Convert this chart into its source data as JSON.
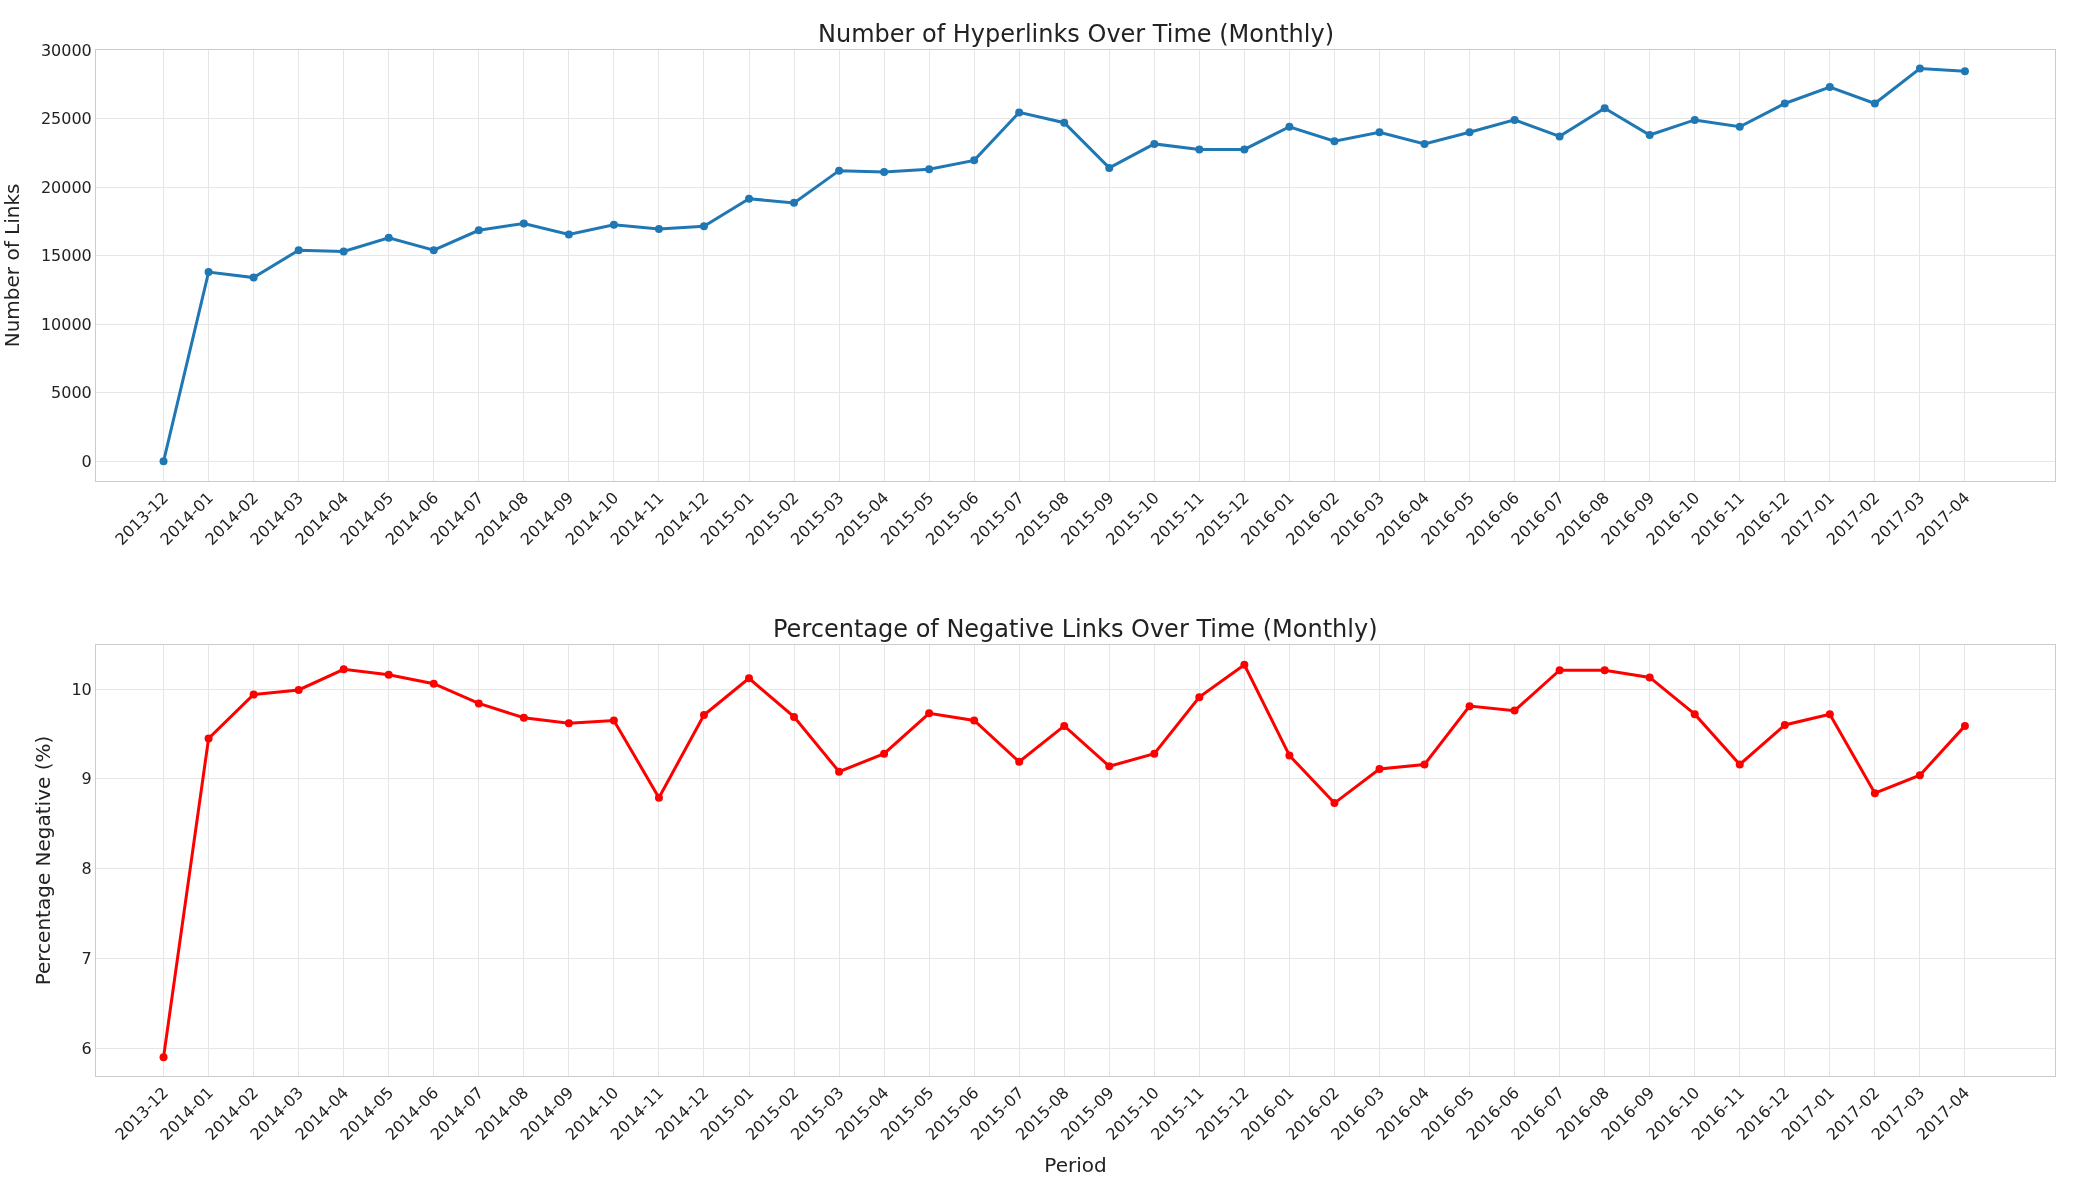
{
  "chart_data": [
    {
      "type": "line",
      "title": "Number of Hyperlinks Over Time (Monthly)",
      "ylabel": "Number of Links",
      "categories": [
        "2013-12",
        "2014-01",
        "2014-02",
        "2014-03",
        "2014-04",
        "2014-05",
        "2014-06",
        "2014-07",
        "2014-08",
        "2014-09",
        "2014-10",
        "2014-11",
        "2014-12",
        "2015-01",
        "2015-02",
        "2015-03",
        "2015-04",
        "2015-05",
        "2015-06",
        "2015-07",
        "2015-08",
        "2015-09",
        "2015-10",
        "2015-11",
        "2015-12",
        "2016-01",
        "2016-02",
        "2016-03",
        "2016-04",
        "2016-05",
        "2016-06",
        "2016-07",
        "2016-08",
        "2016-09",
        "2016-10",
        "2016-11",
        "2016-12",
        "2017-01",
        "2017-02",
        "2017-03",
        "2017-04"
      ],
      "series": [
        {
          "color": "#1f77b4",
          "values": [
            0,
            13800,
            13400,
            15400,
            15300,
            16300,
            15400,
            16850,
            17350,
            16550,
            17250,
            16950,
            17150,
            19150,
            18850,
            21200,
            21100,
            21300,
            21950,
            25450,
            24700,
            21400,
            23150,
            22750,
            22750,
            24400,
            23350,
            24000,
            23150,
            24000,
            24900,
            23700,
            25750,
            23800,
            24900,
            24400,
            26100,
            27300,
            26100,
            28650,
            28450
          ]
        }
      ],
      "ylim": [
        -1430,
        30000
      ],
      "yticks": [
        0,
        5000,
        10000,
        15000,
        20000,
        25000,
        30000
      ],
      "grid": true,
      "marker": "circle",
      "line_style": "solid"
    },
    {
      "type": "line",
      "title": "Percentage of Negative Links Over Time (Monthly)",
      "ylabel": "Percentage Negative (%)",
      "xlabel": "Period",
      "categories": [
        "2013-12",
        "2014-01",
        "2014-02",
        "2014-03",
        "2014-04",
        "2014-05",
        "2014-06",
        "2014-07",
        "2014-08",
        "2014-09",
        "2014-10",
        "2014-11",
        "2014-12",
        "2015-01",
        "2015-02",
        "2015-03",
        "2015-04",
        "2015-05",
        "2015-06",
        "2015-07",
        "2015-08",
        "2015-09",
        "2015-10",
        "2015-11",
        "2015-12",
        "2016-01",
        "2016-02",
        "2016-03",
        "2016-04",
        "2016-05",
        "2016-06",
        "2016-07",
        "2016-08",
        "2016-09",
        "2016-10",
        "2016-11",
        "2016-12",
        "2017-01",
        "2017-02",
        "2017-03",
        "2017-04"
      ],
      "series": [
        {
          "color": "#ff0000",
          "values": [
            5.9,
            9.45,
            9.94,
            9.99,
            10.22,
            10.16,
            10.06,
            9.84,
            9.68,
            9.62,
            9.65,
            8.79,
            9.71,
            10.12,
            9.69,
            9.08,
            9.28,
            9.73,
            9.65,
            9.19,
            9.59,
            9.14,
            9.28,
            9.91,
            10.27,
            9.26,
            8.73,
            9.11,
            9.16,
            9.81,
            9.76,
            10.21,
            10.21,
            10.13,
            9.72,
            9.16,
            9.6,
            9.72,
            8.84,
            9.04,
            9.59
          ]
        }
      ],
      "ylim": [
        5.69,
        10.49
      ],
      "yticks": [
        6,
        7,
        8,
        9,
        10
      ],
      "grid": true,
      "marker": "circle",
      "line_style": "solid"
    }
  ]
}
